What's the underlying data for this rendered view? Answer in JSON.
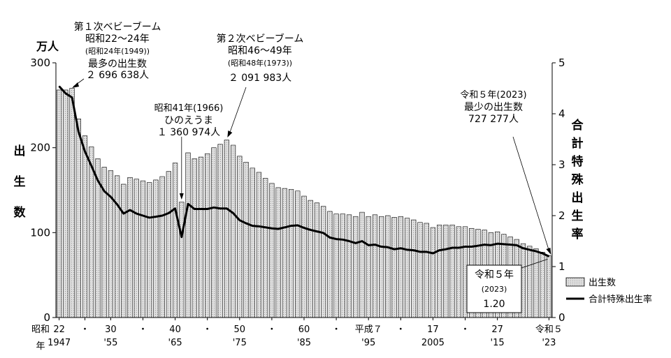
{
  "chart_data": {
    "type": "bar+line",
    "title": "",
    "y_left_unit": "万人",
    "y_left_label": [
      "出",
      "生",
      "数"
    ],
    "y_left_ticks": [
      "0",
      "100",
      "200",
      "300"
    ],
    "y_left_range": [
      0,
      300
    ],
    "y_right_label": [
      "合",
      "計",
      "特",
      "殊",
      "出",
      "生",
      "率"
    ],
    "y_right_ticks": [
      "0",
      "1",
      "2",
      "3",
      "4",
      "5"
    ],
    "y_right_range": [
      0,
      5
    ],
    "x_years": [
      1947,
      1948,
      1949,
      1950,
      1951,
      1952,
      1953,
      1954,
      1955,
      1956,
      1957,
      1958,
      1959,
      1960,
      1961,
      1962,
      1963,
      1964,
      1965,
      1966,
      1967,
      1968,
      1969,
      1970,
      1971,
      1972,
      1973,
      1974,
      1975,
      1976,
      1977,
      1978,
      1979,
      1980,
      1981,
      1982,
      1983,
      1984,
      1985,
      1986,
      1987,
      1988,
      1989,
      1990,
      1991,
      1992,
      1993,
      1994,
      1995,
      1996,
      1997,
      1998,
      1999,
      2000,
      2001,
      2002,
      2003,
      2004,
      2005,
      2006,
      2007,
      2008,
      2009,
      2010,
      2011,
      2012,
      2013,
      2014,
      2015,
      2016,
      2017,
      2018,
      2019,
      2020,
      2021,
      2022,
      2023
    ],
    "x_tick_labels_top": [
      "22",
      "・",
      "30",
      "・",
      "40",
      "・",
      "50",
      "・",
      "60",
      "・",
      "平成７",
      "・",
      "17",
      "・",
      "27",
      "令和５"
    ],
    "x_tick_labels_bottom": [
      "1947",
      "",
      "'55",
      "",
      "'65",
      "",
      "'75",
      "",
      "'85",
      "",
      "'95",
      "",
      "2005",
      "",
      "'15",
      "'23"
    ],
    "x_tick_years": [
      1947,
      1951,
      1955,
      1960,
      1965,
      1970,
      1975,
      1980,
      1985,
      1990,
      1995,
      2000,
      2005,
      2010,
      2015,
      2023
    ],
    "x_era_label": [
      "昭和",
      "年"
    ],
    "series": [
      {
        "name": "出生数",
        "type": "bar",
        "unit": "万人",
        "values": [
          268,
          268,
          270,
          234,
          214,
          201,
          187,
          177,
          173,
          167,
          157,
          165,
          163,
          161,
          159,
          162,
          166,
          172,
          182,
          136,
          194,
          187,
          189,
          193,
          200,
          204,
          209,
          203,
          190,
          183,
          176,
          171,
          164,
          158,
          153,
          152,
          151,
          149,
          143,
          138,
          135,
          131,
          125,
          122,
          122,
          121,
          119,
          124,
          119,
          121,
          119,
          120,
          118,
          119,
          117,
          115,
          112,
          111,
          106,
          109,
          109,
          109,
          107,
          107,
          105,
          104,
          103,
          100,
          101,
          98,
          95,
          92,
          87,
          84,
          81,
          77,
          73
        ]
      },
      {
        "name": "合計特殊出生率",
        "type": "line",
        "values": [
          4.54,
          4.4,
          4.32,
          3.65,
          3.26,
          2.98,
          2.69,
          2.48,
          2.37,
          2.22,
          2.04,
          2.11,
          2.04,
          2.0,
          1.96,
          1.98,
          2.0,
          2.05,
          2.14,
          1.58,
          2.23,
          2.13,
          2.13,
          2.13,
          2.16,
          2.14,
          2.14,
          2.05,
          1.91,
          1.85,
          1.8,
          1.79,
          1.77,
          1.75,
          1.74,
          1.77,
          1.8,
          1.81,
          1.76,
          1.72,
          1.69,
          1.66,
          1.57,
          1.54,
          1.53,
          1.5,
          1.46,
          1.5,
          1.42,
          1.43,
          1.39,
          1.38,
          1.34,
          1.36,
          1.33,
          1.32,
          1.29,
          1.29,
          1.26,
          1.32,
          1.34,
          1.37,
          1.37,
          1.39,
          1.39,
          1.41,
          1.43,
          1.42,
          1.45,
          1.44,
          1.43,
          1.42,
          1.36,
          1.33,
          1.3,
          1.26,
          1.2
        ]
      }
    ],
    "legend_position": "bottom-right",
    "annotations": [
      {
        "lines": [
          "第１次ベビーブーム",
          "昭和22～24年",
          "(昭和24年(1949))",
          "最多の出生数",
          "２ 696 638人"
        ],
        "year": 1949
      },
      {
        "lines": [
          "第２次ベビーブーム",
          "昭和46～49年",
          "(昭和48年(1973))",
          "２ 091 983人"
        ],
        "year": 1973
      },
      {
        "lines": [
          "昭和41年(1966)",
          "ひのえうま",
          "１ 360 974人"
        ],
        "year": 1966
      },
      {
        "lines": [
          "令和５年(2023)",
          "最少の出生数",
          "727 277人"
        ],
        "year": 2023
      }
    ],
    "callout_box": [
      "令和５年",
      "(2023)",
      "1.20"
    ]
  }
}
